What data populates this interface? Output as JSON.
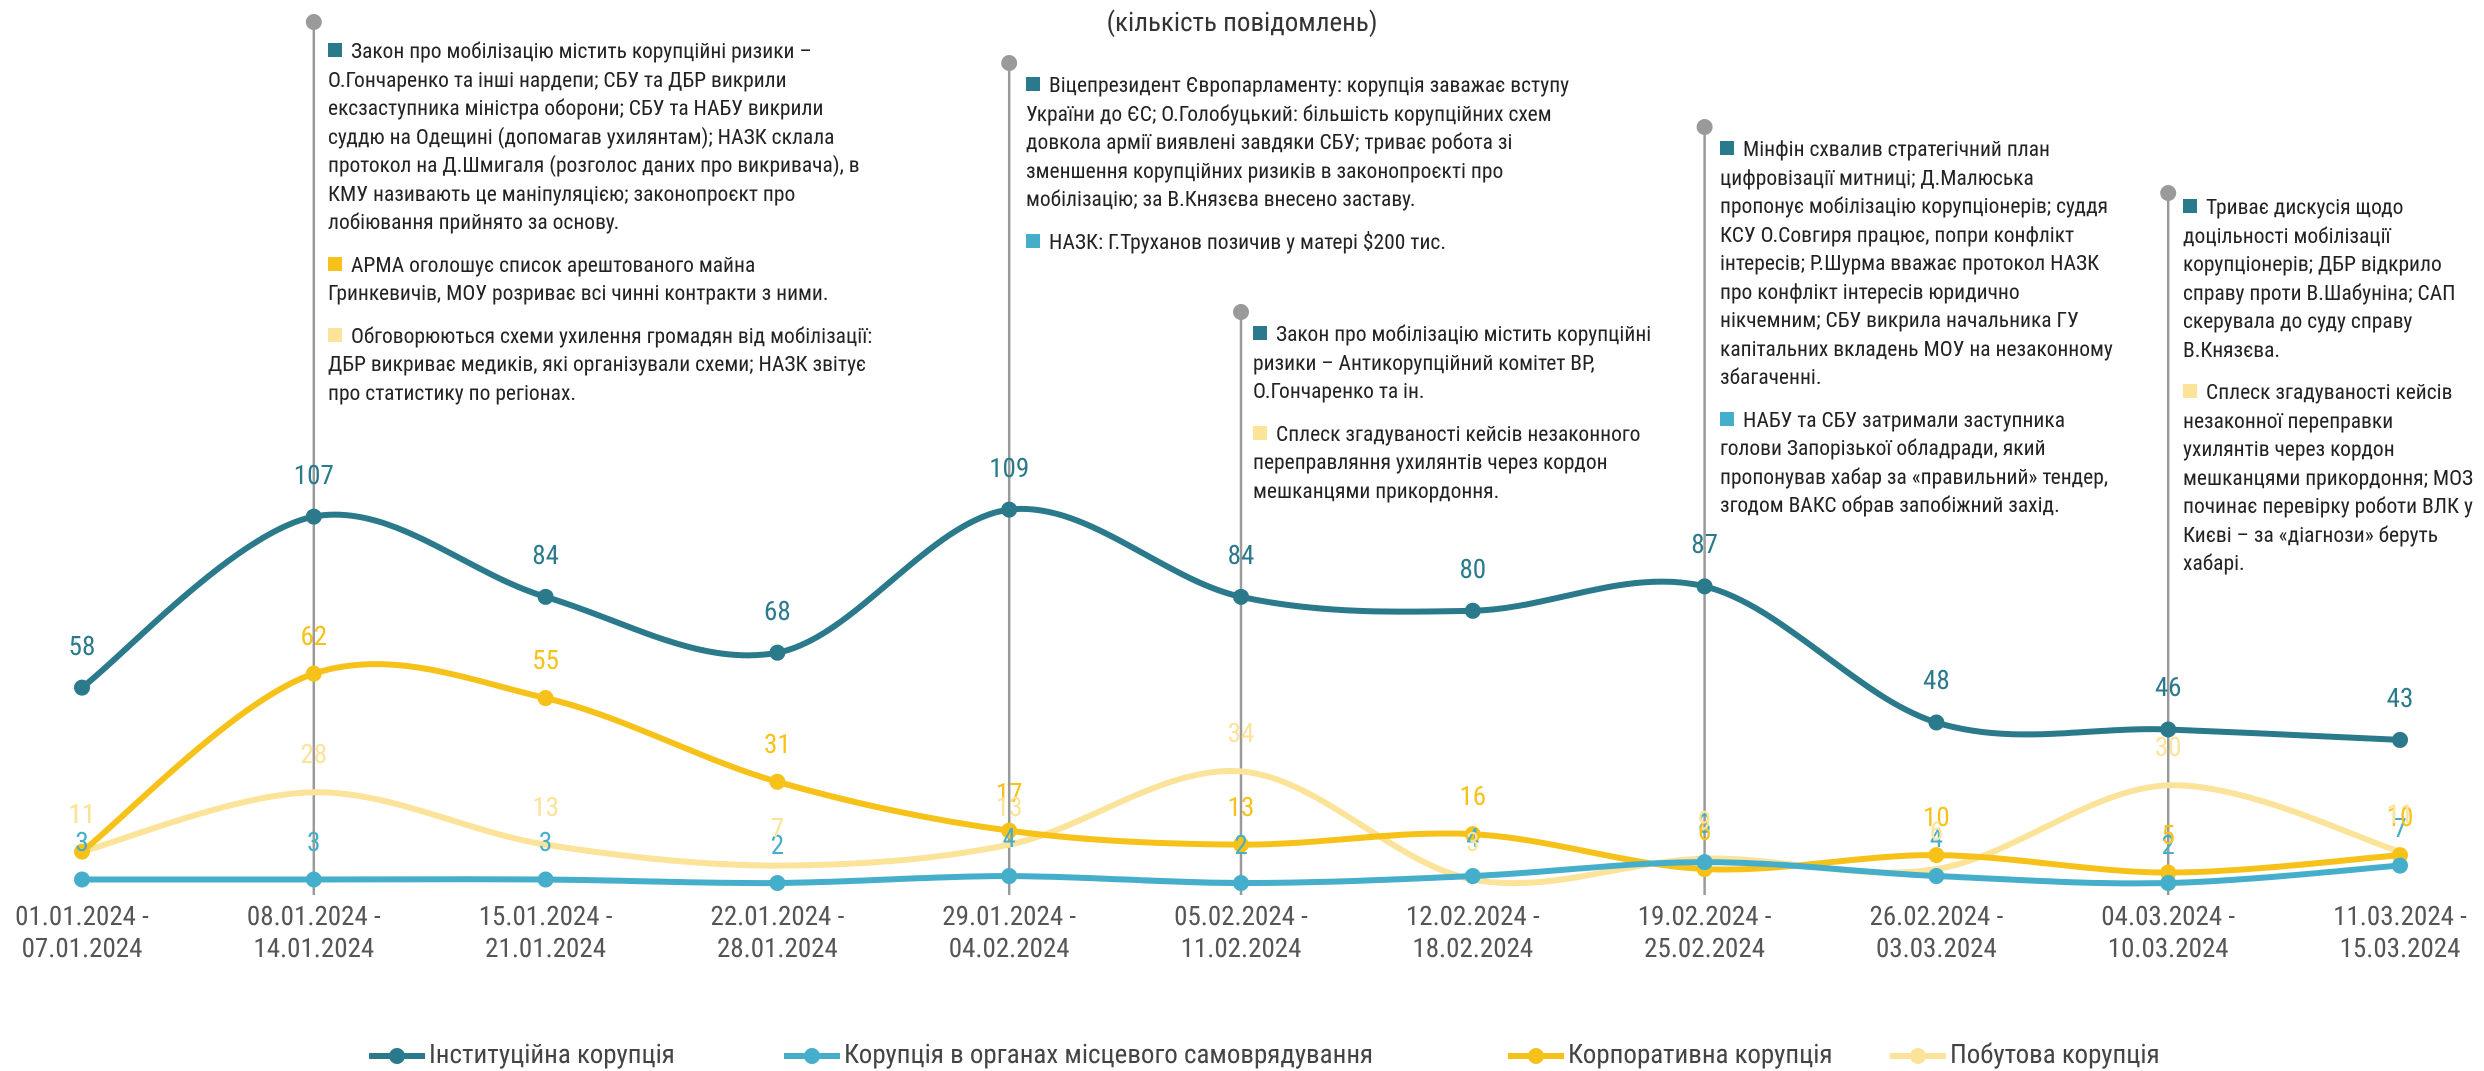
{
  "chart_data": {
    "type": "line",
    "title": "(кількість повідомлень)",
    "categories": [
      "01.01.2024 - 07.01.2024",
      "08.01.2024 - 14.01.2024",
      "15.01.2024 - 21.01.2024",
      "22.01.2024 - 28.01.2024",
      "29.01.2024 - 04.02.2024",
      "05.02.2024 - 11.02.2024",
      "12.02.2024 - 18.02.2024",
      "19.02.2024 - 25.02.2024",
      "26.02.2024 - 03.03.2024",
      "04.03.2024 - 10.03.2024",
      "11.03.2024 - 15.03.2024"
    ],
    "series": [
      {
        "name": "Інституційна корупція",
        "color": "#2b7a8c",
        "values": [
          58,
          107,
          84,
          68,
          109,
          84,
          80,
          87,
          48,
          46,
          43
        ]
      },
      {
        "name": "Корупція в органах місцевого самоврядування",
        "color": "#45aecb",
        "values": [
          3,
          3,
          3,
          2,
          4,
          2,
          4,
          8,
          4,
          2,
          7
        ]
      },
      {
        "name": "Корпоративна корупція",
        "color": "#f6c21a",
        "values": [
          11,
          62,
          55,
          31,
          17,
          13,
          16,
          6,
          10,
          5,
          10
        ]
      },
      {
        "name": "Побутова корупція",
        "color": "#fbe39a",
        "values": [
          11,
          28,
          13,
          7,
          13,
          34,
          3,
          9,
          6,
          30,
          11
        ]
      }
    ],
    "annotations": [
      {
        "items": [
          {
            "color": "#2b7a8c",
            "text": "Закон про мобілізацію містить корупційні ризики – О.Гончаренко та інші нардепи; СБУ та ДБР викрили ексзаступника міністра оборони; СБУ та НАБУ викрили суддю на Одещині (допомагав ухилянтам); НАЗК склала протокол на Д.Шмигаля (розголос даних про викривача), в КМУ називають це маніпуляцією; законопроєкт про лобіювання прийнято за основу."
          },
          {
            "color": "#f6c21a",
            "text": "АРМА оголошує список арештованого майна Гринкевичів, МОУ розриває всі чинні контракти з ними."
          },
          {
            "color": "#fbe39a",
            "text": "Обговорюються схеми ухилення громадян від мобілізації: ДБР викриває медиків, які організували схеми; НАЗК звітує про статистику по регіонах."
          }
        ]
      },
      {
        "items": [
          {
            "color": "#2b7a8c",
            "text": "Віцепрезидент Європарламенту: корупція заважає вступу України до ЄС; О.Голобуцький: більшість корупційних схем довкола армії виявлені завдяки СБУ; триває робота зі зменшення корупційних ризиків в законопроєкті про мобілізацію; за В.Князєва внесено заставу."
          },
          {
            "color": "#45aecb",
            "text": "НАЗК: Г.Труханов позичив у матері $200 тис."
          }
        ]
      },
      {
        "items": [
          {
            "color": "#2b7a8c",
            "text": "Закон про мобілізацію містить корупційні ризики – Антикорупційний комітет ВР, О.Гончаренко та ін."
          },
          {
            "color": "#fbe39a",
            "text": "Сплеск згадуваності кейсів незаконного переправляння ухилянтів через кордон мешканцями прикордоння."
          }
        ]
      },
      {
        "items": [
          {
            "color": "#2b7a8c",
            "text": "Мінфін схвалив стратегічний план цифровізації митниці; Д.Малюська пропонує мобілізацію корупціонерів; суддя КСУ О.Совгиря працює, попри конфлікт інтересів; Р.Шурма вважає протокол НАЗК про конфлікт інтересів юридично нікчемним; СБУ викрила начальника ГУ капітальних вкладень МОУ на незаконному збагаченні."
          },
          {
            "color": "#45aecb",
            "text": "НАБУ та СБУ затримали заступника голови Запорізької обладради, який пропонував хабар за «правильний» тендер, згодом ВАКС обрав запобіжний захід."
          }
        ]
      },
      {
        "items": [
          {
            "color": "#2b7a8c",
            "text": "Триває дискусія щодо доцільності мобілізації корупціонерів; ДБР відкрило справу проти В.Шабуніна; САП скерувала до суду справу В.Князєва."
          },
          {
            "color": "#fbe39a",
            "text": "Сплеск згадуваності кейсів незаконної переправки ухилянтів через кордон мешканцями прикордоння; МОЗ починає перевірку роботи ВЛК у Києві – за «діагнози» беруть хабарі."
          }
        ]
      }
    ]
  }
}
